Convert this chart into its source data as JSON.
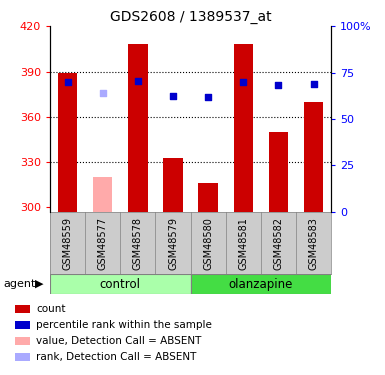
{
  "title": "GDS2608 / 1389537_at",
  "samples": [
    "GSM48559",
    "GSM48577",
    "GSM48578",
    "GSM48579",
    "GSM48580",
    "GSM48581",
    "GSM48582",
    "GSM48583"
  ],
  "groups": [
    "control",
    "control",
    "control",
    "control",
    "olanzapine",
    "olanzapine",
    "olanzapine",
    "olanzapine"
  ],
  "bar_values": [
    389,
    null,
    408,
    333,
    316,
    408,
    350,
    370
  ],
  "bar_absent": [
    null,
    320,
    null,
    null,
    null,
    null,
    null,
    null
  ],
  "rank_values": [
    383,
    null,
    384,
    374,
    373,
    383,
    381,
    382
  ],
  "rank_absent": [
    null,
    376,
    null,
    null,
    null,
    null,
    null,
    null
  ],
  "bar_color": "#cc0000",
  "bar_absent_color": "#ffaaaa",
  "rank_color": "#0000cc",
  "rank_absent_color": "#aaaaff",
  "ymin": 297,
  "ymax": 420,
  "yticks": [
    300,
    330,
    360,
    390,
    420
  ],
  "right_yticks": [
    0,
    25,
    50,
    75,
    100
  ],
  "grid_lines": [
    330,
    360,
    390
  ],
  "group_colors": {
    "control": "#aaffaa",
    "olanzapine": "#44dd44"
  },
  "bar_width": 0.55
}
